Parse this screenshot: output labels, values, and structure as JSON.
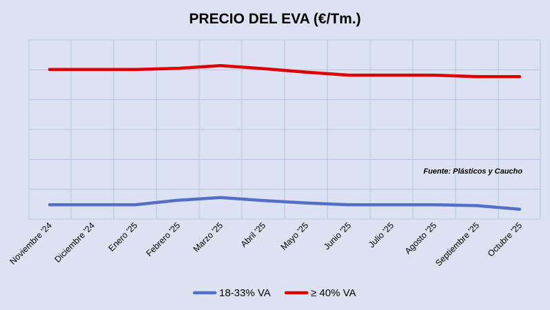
{
  "chart_data": {
    "type": "line",
    "title": "PRECIO DEL EVA (€/Tm.)",
    "xlabel": "",
    "ylabel": "",
    "categories": [
      "Noviembre '24",
      "Diciembre '24",
      "Enero '25",
      "Febrero '25",
      "Marzo '25",
      "Abril '25",
      "Mayo '25",
      "Junio '25",
      "Julio '25",
      "Agosto '25",
      "Septiembre '25",
      "Octubre '25"
    ],
    "ylim": [
      0,
      6
    ],
    "y_tick_labels_shown": false,
    "grid": true,
    "legend": "bottom",
    "annotation": "Fuente: Plásticos y Caucho",
    "series": [
      {
        "name": "18-33% VA",
        "color": "#5470c6",
        "values": [
          0.48,
          0.48,
          0.48,
          0.63,
          0.72,
          0.62,
          0.54,
          0.48,
          0.48,
          0.48,
          0.45,
          0.33
        ]
      },
      {
        "name": "≥ 40% VA",
        "color": "#dd0000",
        "values": [
          5.01,
          5.01,
          5.01,
          5.05,
          5.14,
          5.04,
          4.92,
          4.82,
          4.82,
          4.82,
          4.77,
          4.77
        ]
      }
    ]
  }
}
